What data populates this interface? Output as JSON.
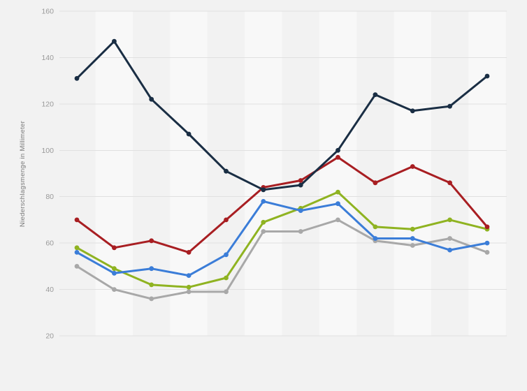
{
  "chart_data": {
    "type": "line",
    "title": "",
    "xlabel": "",
    "ylabel": "Niederschlagsmenge in Millimeter",
    "x_axis": {
      "labels_visible": false,
      "points": 12
    },
    "yticks": [
      20,
      40,
      60,
      80,
      100,
      120,
      140,
      160
    ],
    "ylim": [
      20,
      160
    ],
    "grid": "horizontal",
    "legend": "none",
    "marker": "circle",
    "series": [
      {
        "name": "dark-blue-series",
        "color": "#1a2e44",
        "values": [
          131,
          147,
          122,
          107,
          91,
          83,
          85,
          100,
          124,
          117,
          119,
          132
        ]
      },
      {
        "name": "red-series",
        "color": "#a81e22",
        "values": [
          70,
          58,
          61,
          56,
          70,
          84,
          87,
          97,
          86,
          93,
          86,
          67
        ]
      },
      {
        "name": "blue-series",
        "color": "#3b7dd8",
        "values": [
          56,
          47,
          49,
          46,
          55,
          78,
          74,
          77,
          62,
          62,
          57,
          60
        ]
      },
      {
        "name": "green-series",
        "color": "#8fb321",
        "values": [
          58,
          49,
          42,
          41,
          45,
          69,
          75,
          82,
          67,
          66,
          70,
          66
        ]
      },
      {
        "name": "gray-series",
        "color": "#a8a8a8",
        "values": [
          50,
          40,
          36,
          39,
          39,
          65,
          65,
          70,
          61,
          59,
          62,
          56
        ]
      }
    ],
    "colors": {
      "background": "#f2f2f2",
      "stripe": "#f8f8f8",
      "gridline": "#e0e0e0",
      "tick_text": "#999999",
      "axis_title_text": "#7a7a7a"
    }
  }
}
